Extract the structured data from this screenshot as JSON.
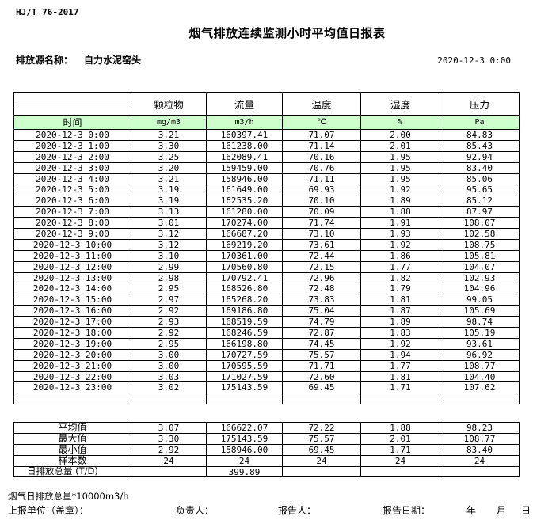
{
  "page": {
    "standard_code": "HJ/T 76-2017",
    "title": "烟气排放连续监测小时平均值日报表",
    "source_label": "排放源名称：",
    "source_name": "自力水泥窑头",
    "report_datetime": "2020-12-3 0:00"
  },
  "table": {
    "time_header": "时间",
    "columns": [
      "颗粒物",
      "流量",
      "温度",
      "湿度",
      "压力"
    ],
    "units": [
      "mg/m3",
      "m3/h",
      "℃",
      "%",
      "Pa"
    ],
    "rows": [
      [
        "2020-12-3 0:00",
        "3.21",
        "160397.41",
        "71.07",
        "2.00",
        "84.83"
      ],
      [
        "2020-12-3 1:00",
        "3.30",
        "161238.00",
        "71.14",
        "2.01",
        "85.43"
      ],
      [
        "2020-12-3 2:00",
        "3.25",
        "162089.41",
        "70.16",
        "1.95",
        "92.94"
      ],
      [
        "2020-12-3 3:00",
        "3.20",
        "159459.00",
        "70.76",
        "1.95",
        "83.40"
      ],
      [
        "2020-12-3 4:00",
        "3.21",
        "158946.00",
        "71.11",
        "1.95",
        "85.06"
      ],
      [
        "2020-12-3 5:00",
        "3.19",
        "161649.00",
        "69.93",
        "1.92",
        "95.65"
      ],
      [
        "2020-12-3 6:00",
        "3.19",
        "162535.20",
        "70.10",
        "1.89",
        "85.12"
      ],
      [
        "2020-12-3 7:00",
        "3.13",
        "161280.00",
        "70.09",
        "1.88",
        "87.97"
      ],
      [
        "2020-12-3 8:00",
        "3.01",
        "170274.00",
        "71.74",
        "1.91",
        "108.07"
      ],
      [
        "2020-12-3 9:00",
        "3.12",
        "166687.20",
        "73.10",
        "1.93",
        "102.58"
      ],
      [
        "2020-12-3 10:00",
        "3.12",
        "169219.20",
        "73.61",
        "1.92",
        "108.75"
      ],
      [
        "2020-12-3 11:00",
        "3.10",
        "170361.00",
        "72.44",
        "1.86",
        "105.81"
      ],
      [
        "2020-12-3 12:00",
        "2.99",
        "170560.80",
        "72.15",
        "1.77",
        "104.07"
      ],
      [
        "2020-12-3 13:00",
        "2.98",
        "170792.41",
        "72.96",
        "1.82",
        "102.93"
      ],
      [
        "2020-12-3 14:00",
        "2.95",
        "168526.80",
        "72.48",
        "1.79",
        "104.96"
      ],
      [
        "2020-12-3 15:00",
        "2.97",
        "165268.20",
        "73.83",
        "1.81",
        "99.05"
      ],
      [
        "2020-12-3 16:00",
        "2.92",
        "169186.80",
        "75.04",
        "1.87",
        "105.69"
      ],
      [
        "2020-12-3 17:00",
        "2.93",
        "168519.59",
        "74.79",
        "1.89",
        "98.74"
      ],
      [
        "2020-12-3 18:00",
        "2.92",
        "168246.59",
        "72.87",
        "1.83",
        "105.19"
      ],
      [
        "2020-12-3 19:00",
        "2.95",
        "166198.80",
        "74.45",
        "1.92",
        "93.61"
      ],
      [
        "2020-12-3 20:00",
        "3.00",
        "170727.59",
        "75.57",
        "1.94",
        "96.92"
      ],
      [
        "2020-12-3 21:00",
        "3.00",
        "170595.59",
        "71.71",
        "1.77",
        "108.77"
      ],
      [
        "2020-12-3 22:00",
        "3.03",
        "171027.59",
        "72.60",
        "1.81",
        "104.40"
      ],
      [
        "2020-12-3 23:00",
        "3.02",
        "175143.59",
        "69.45",
        "1.71",
        "107.62"
      ]
    ]
  },
  "summary": {
    "rows": [
      [
        "平均值",
        "3.07",
        "166622.07",
        "72.22",
        "1.88",
        "98.23"
      ],
      [
        "最大值",
        "3.30",
        "175143.59",
        "75.57",
        "2.01",
        "108.77"
      ],
      [
        "最小值",
        "2.92",
        "158946.00",
        "69.45",
        "1.71",
        "83.40"
      ],
      [
        "样本数",
        "24",
        "24",
        "24",
        "24",
        "24"
      ],
      [
        "日排放总量 (T/D)",
        "",
        "399.89",
        "",
        "",
        ""
      ]
    ]
  },
  "footer": {
    "note": "烟气日排放总量*10000m3/h",
    "unit_label": "上报单位（盖章）：",
    "responsible_label": "负责人：",
    "reporter_label": "报告人：",
    "report_date_label": "报告日期：",
    "year_label": "年",
    "month_label": "月",
    "day_label": "日"
  },
  "colors": {
    "header_row_green": "#ccffcc",
    "table_border": "#000000"
  }
}
